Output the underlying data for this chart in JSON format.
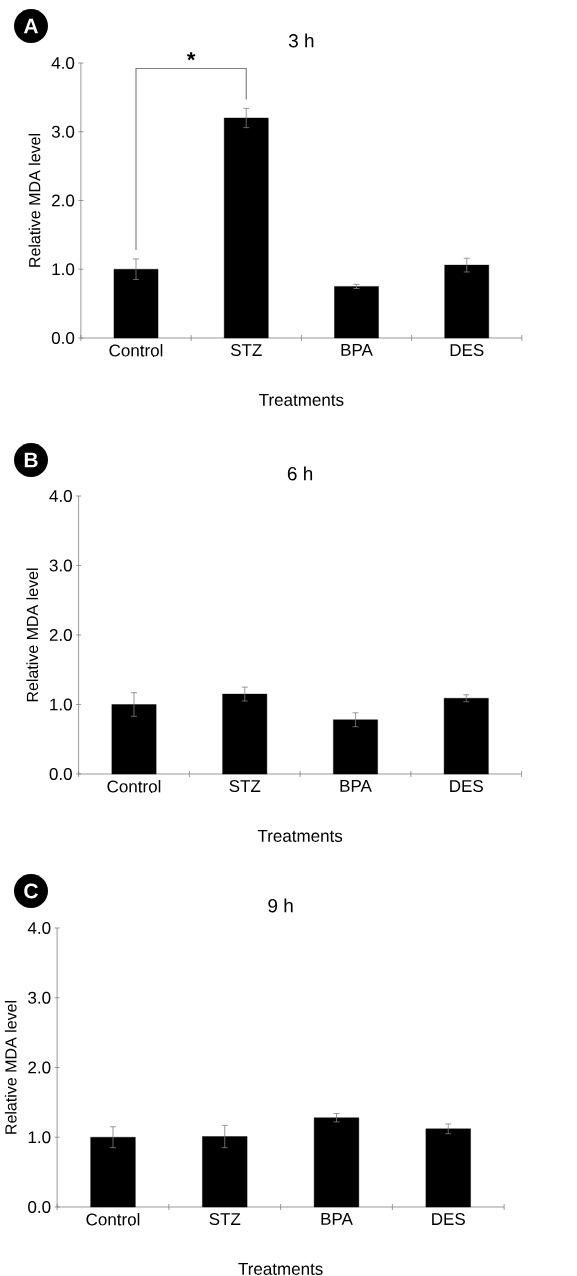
{
  "chart_data": [
    {
      "type": "bar",
      "title": "3 h",
      "xlabel": "Treatments",
      "ylabel": "Relative MDA level",
      "categories": [
        "Control",
        "STZ",
        "BPA",
        "DES"
      ],
      "values": [
        1.0,
        3.2,
        0.75,
        1.06
      ],
      "errors": [
        0.15,
        0.14,
        0.03,
        0.1
      ],
      "color": "#000000",
      "ylim": [
        0,
        4
      ],
      "yticks": [
        {
          "value": 0,
          "label": "0.0"
        },
        {
          "value": 1,
          "label": "1.0"
        },
        {
          "value": 2,
          "label": "2.0"
        },
        {
          "value": 3,
          "label": "3.0"
        },
        {
          "value": 4,
          "label": "4.0"
        }
      ],
      "annotations": [
        "A",
        "*"
      ]
    },
    {
      "type": "bar",
      "title": "6 h",
      "xlabel": "Treatments",
      "ylabel": "Relative MDA level",
      "categories": [
        "Control",
        "STZ",
        "BPA",
        "DES"
      ],
      "values": [
        1.0,
        1.15,
        0.78,
        1.09
      ],
      "errors": [
        0.17,
        0.1,
        0.1,
        0.05
      ],
      "color": "#000000",
      "ylim": [
        0,
        4
      ],
      "yticks": [
        {
          "value": 0,
          "label": "0.0"
        },
        {
          "value": 1,
          "label": "1.0"
        },
        {
          "value": 2,
          "label": "2.0"
        },
        {
          "value": 3,
          "label": "3.0"
        },
        {
          "value": 4,
          "label": "4.0"
        }
      ],
      "annotations": [
        "B"
      ]
    },
    {
      "type": "bar",
      "title": "9 h",
      "xlabel": "Treatments",
      "ylabel": "Relative MDA level",
      "categories": [
        "Control",
        "STZ",
        "BPA",
        "DES"
      ],
      "values": [
        1.0,
        1.01,
        1.28,
        1.12
      ],
      "errors": [
        0.15,
        0.16,
        0.06,
        0.07
      ],
      "color": "#000000",
      "ylim": [
        0,
        4
      ],
      "yticks": [
        {
          "value": 0,
          "label": "0.0"
        },
        {
          "value": 1,
          "label": "1.0"
        },
        {
          "value": 2,
          "label": "2.0"
        },
        {
          "value": 3,
          "label": "3.0"
        },
        {
          "value": 4,
          "label": "4.0"
        }
      ],
      "annotations": [
        "C"
      ]
    }
  ]
}
